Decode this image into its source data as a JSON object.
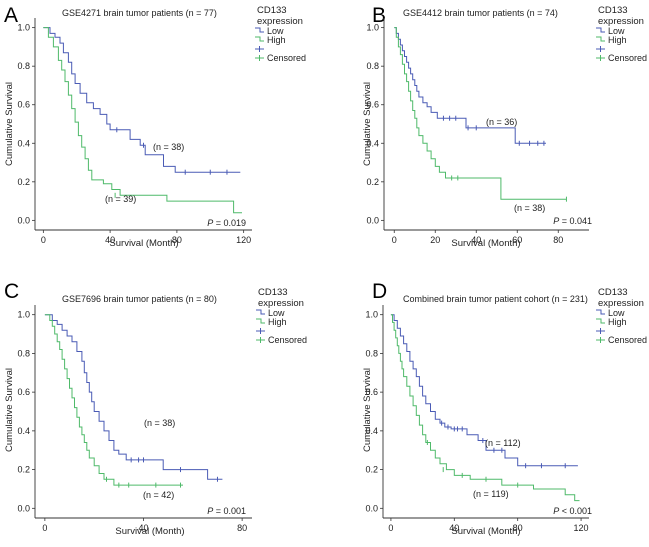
{
  "chart_data": [
    {
      "type": "line",
      "panel": "A",
      "title": "GSE4271 brain tumor patients (n = 77)",
      "xlabel": "Survival (Month)",
      "ylabel": "Cumulative Survival",
      "xlim": [
        -5,
        125
      ],
      "ylim": [
        -0.05,
        1.05
      ],
      "xticks": [
        0,
        40,
        80,
        120
      ],
      "yticks": [
        0.0,
        0.2,
        0.4,
        0.6,
        0.8,
        1.0
      ],
      "legend": {
        "title_line1": "CD133",
        "title_line2": "expression",
        "entries": [
          "Low",
          "High",
          "",
          "Censored"
        ],
        "position": "top-right"
      },
      "series": [
        {
          "name": "Low",
          "color": "#4a5bb5",
          "steps": [
            [
              0,
              1.0
            ],
            [
              4,
              0.97
            ],
            [
              7,
              0.95
            ],
            [
              10,
              0.92
            ],
            [
              12,
              0.87
            ],
            [
              15,
              0.82
            ],
            [
              17,
              0.76
            ],
            [
              19,
              0.71
            ],
            [
              22,
              0.66
            ],
            [
              26,
              0.61
            ],
            [
              30,
              0.58
            ],
            [
              34,
              0.55
            ],
            [
              38,
              0.5
            ],
            [
              40,
              0.47
            ],
            [
              48,
              0.47
            ],
            [
              52,
              0.42
            ],
            [
              58,
              0.39
            ],
            [
              61,
              0.34
            ],
            [
              72,
              0.28
            ],
            [
              79,
              0.25
            ],
            [
              118,
              0.25
            ]
          ],
          "censored": [
            [
              44,
              0.47
            ],
            [
              60,
              0.39
            ],
            [
              85,
              0.25
            ],
            [
              100,
              0.25
            ],
            [
              110,
              0.25
            ]
          ],
          "n_label": "(n = 38)"
        },
        {
          "name": "High",
          "color": "#4fba6a",
          "steps": [
            [
              0,
              1.0
            ],
            [
              3,
              0.95
            ],
            [
              6,
              0.9
            ],
            [
              9,
              0.83
            ],
            [
              11,
              0.78
            ],
            [
              13,
              0.72
            ],
            [
              15,
              0.65
            ],
            [
              17,
              0.58
            ],
            [
              19,
              0.51
            ],
            [
              21,
              0.44
            ],
            [
              23,
              0.38
            ],
            [
              25,
              0.32
            ],
            [
              27,
              0.26
            ],
            [
              29,
              0.21
            ],
            [
              36,
              0.19
            ],
            [
              41,
              0.16
            ],
            [
              46,
              0.13
            ],
            [
              74,
              0.1
            ],
            [
              114,
              0.04
            ],
            [
              119,
              0.04
            ]
          ],
          "censored": [
            [
              43,
              0.13
            ]
          ],
          "n_label": "(n = 39)"
        }
      ],
      "p_text": "P",
      "p_value": " = 0.019"
    },
    {
      "type": "line",
      "panel": "B",
      "title": "GSE4412 brain tumor patients (n = 74)",
      "xlabel": "Survival (Month)",
      "ylabel": "Cumulative Survival",
      "xlim": [
        -5,
        95
      ],
      "ylim": [
        -0.05,
        1.05
      ],
      "xticks": [
        0,
        20,
        40,
        60,
        80
      ],
      "yticks": [
        0.0,
        0.2,
        0.4,
        0.6,
        0.8,
        1.0
      ],
      "legend": {
        "title_line1": "CD133",
        "title_line2": "expression",
        "entries": [
          "Low",
          "High",
          "",
          "Censored"
        ],
        "position": "top-right"
      },
      "series": [
        {
          "name": "Low",
          "color": "#4a5bb5",
          "steps": [
            [
              0,
              1.0
            ],
            [
              1,
              0.97
            ],
            [
              2,
              0.94
            ],
            [
              3,
              0.91
            ],
            [
              4,
              0.88
            ],
            [
              5,
              0.85
            ],
            [
              6,
              0.82
            ],
            [
              7,
              0.79
            ],
            [
              8,
              0.76
            ],
            [
              9,
              0.73
            ],
            [
              10,
              0.7
            ],
            [
              11,
              0.67
            ],
            [
              12,
              0.64
            ],
            [
              14,
              0.61
            ],
            [
              16,
              0.59
            ],
            [
              18,
              0.56
            ],
            [
              21,
              0.53
            ],
            [
              35,
              0.48
            ],
            [
              59,
              0.4
            ],
            [
              74,
              0.4
            ]
          ],
          "censored": [
            [
              24,
              0.53
            ],
            [
              27,
              0.53
            ],
            [
              30,
              0.53
            ],
            [
              36,
              0.48
            ],
            [
              40,
              0.48
            ],
            [
              61,
              0.4
            ],
            [
              66,
              0.4
            ],
            [
              70,
              0.4
            ],
            [
              73,
              0.4
            ]
          ],
          "n_label": "(n = 36)"
        },
        {
          "name": "High",
          "color": "#4fba6a",
          "steps": [
            [
              0,
              1.0
            ],
            [
              1,
              0.95
            ],
            [
              2,
              0.9
            ],
            [
              3,
              0.86
            ],
            [
              4,
              0.81
            ],
            [
              5,
              0.76
            ],
            [
              6,
              0.72
            ],
            [
              7,
              0.67
            ],
            [
              8,
              0.62
            ],
            [
              9,
              0.57
            ],
            [
              10,
              0.53
            ],
            [
              11,
              0.48
            ],
            [
              12,
              0.44
            ],
            [
              14,
              0.4
            ],
            [
              16,
              0.36
            ],
            [
              18,
              0.32
            ],
            [
              20,
              0.28
            ],
            [
              22,
              0.25
            ],
            [
              25,
              0.22
            ],
            [
              52,
              0.11
            ],
            [
              84,
              0.11
            ]
          ],
          "censored": [
            [
              28,
              0.22
            ],
            [
              31,
              0.22
            ],
            [
              84,
              0.11
            ]
          ],
          "n_label": "(n = 38)"
        }
      ],
      "p_text": "P",
      "p_value": " = 0.041"
    },
    {
      "type": "line",
      "panel": "C",
      "title": "GSE7696 brain tumor patients (n = 80)",
      "xlabel": "Survival (Month)",
      "ylabel": "Cumulative Survival",
      "xlim": [
        -4,
        84
      ],
      "ylim": [
        -0.05,
        1.05
      ],
      "xticks": [
        0,
        40,
        80
      ],
      "yticks": [
        0.0,
        0.2,
        0.4,
        0.6,
        0.8,
        1.0
      ],
      "legend": {
        "title_line1": "CD133",
        "title_line2": "expression",
        "entries": [
          "Low",
          "High",
          "",
          "Censored"
        ],
        "position": "top-right"
      },
      "series": [
        {
          "name": "Low",
          "color": "#4a5bb5",
          "steps": [
            [
              0,
              1.0
            ],
            [
              3,
              0.97
            ],
            [
              5,
              0.95
            ],
            [
              7,
              0.92
            ],
            [
              9,
              0.89
            ],
            [
              11,
              0.86
            ],
            [
              13,
              0.81
            ],
            [
              15,
              0.76
            ],
            [
              16,
              0.7
            ],
            [
              17,
              0.65
            ],
            [
              18,
              0.6
            ],
            [
              19,
              0.55
            ],
            [
              20,
              0.5
            ],
            [
              22,
              0.45
            ],
            [
              24,
              0.4
            ],
            [
              26,
              0.35
            ],
            [
              28,
              0.3
            ],
            [
              30,
              0.28
            ],
            [
              33,
              0.25
            ],
            [
              48,
              0.2
            ],
            [
              66,
              0.15
            ],
            [
              72,
              0.15
            ]
          ],
          "censored": [
            [
              35,
              0.25
            ],
            [
              38,
              0.25
            ],
            [
              40,
              0.25
            ],
            [
              55,
              0.2
            ],
            [
              70,
              0.15
            ]
          ],
          "n_label": "(n = 38)"
        },
        {
          "name": "High",
          "color": "#4fba6a",
          "steps": [
            [
              0,
              1.0
            ],
            [
              2,
              0.97
            ],
            [
              3,
              0.94
            ],
            [
              4,
              0.9
            ],
            [
              5,
              0.86
            ],
            [
              6,
              0.82
            ],
            [
              7,
              0.77
            ],
            [
              8,
              0.72
            ],
            [
              9,
              0.67
            ],
            [
              10,
              0.62
            ],
            [
              11,
              0.57
            ],
            [
              12,
              0.52
            ],
            [
              13,
              0.47
            ],
            [
              14,
              0.42
            ],
            [
              15,
              0.38
            ],
            [
              16,
              0.34
            ],
            [
              17,
              0.3
            ],
            [
              18,
              0.26
            ],
            [
              20,
              0.22
            ],
            [
              22,
              0.18
            ],
            [
              24,
              0.15
            ],
            [
              28,
              0.12
            ],
            [
              56,
              0.12
            ]
          ],
          "censored": [
            [
              25,
              0.15
            ],
            [
              30,
              0.12
            ],
            [
              34,
              0.12
            ],
            [
              45,
              0.12
            ],
            [
              55,
              0.12
            ]
          ],
          "n_label": "(n = 42)"
        }
      ],
      "p_text": "P",
      "p_value": " = 0.001"
    },
    {
      "type": "line",
      "panel": "D",
      "title": "Combined brain tumor patient cohort (n = 231)",
      "xlabel": "Survival (Month)",
      "ylabel": "Cumulative Survival",
      "xlim": [
        -5,
        125
      ],
      "ylim": [
        -0.05,
        1.05
      ],
      "xticks": [
        0,
        40,
        80,
        120
      ],
      "yticks": [
        0.0,
        0.2,
        0.4,
        0.6,
        0.8,
        1.0
      ],
      "legend": {
        "title_line1": "CD133",
        "title_line2": "expression",
        "entries": [
          "Low",
          "High",
          "",
          "Censored"
        ],
        "position": "top-right"
      },
      "series": [
        {
          "name": "Low",
          "color": "#4a5bb5",
          "steps": [
            [
              0,
              1.0
            ],
            [
              2,
              0.97
            ],
            [
              4,
              0.93
            ],
            [
              6,
              0.89
            ],
            [
              8,
              0.85
            ],
            [
              10,
              0.81
            ],
            [
              12,
              0.76
            ],
            [
              14,
              0.72
            ],
            [
              16,
              0.68
            ],
            [
              18,
              0.63
            ],
            [
              20,
              0.58
            ],
            [
              22,
              0.54
            ],
            [
              25,
              0.5
            ],
            [
              28,
              0.46
            ],
            [
              31,
              0.44
            ],
            [
              34,
              0.42
            ],
            [
              38,
              0.41
            ],
            [
              48,
              0.38
            ],
            [
              55,
              0.35
            ],
            [
              60,
              0.3
            ],
            [
              72,
              0.26
            ],
            [
              80,
              0.22
            ],
            [
              118,
              0.22
            ]
          ],
          "censored": [
            [
              32,
              0.44
            ],
            [
              36,
              0.42
            ],
            [
              40,
              0.41
            ],
            [
              42,
              0.41
            ],
            [
              45,
              0.41
            ],
            [
              58,
              0.35
            ],
            [
              65,
              0.3
            ],
            [
              70,
              0.3
            ],
            [
              85,
              0.22
            ],
            [
              95,
              0.22
            ],
            [
              110,
              0.22
            ]
          ],
          "n_label": "(n = 112)"
        },
        {
          "name": "High",
          "color": "#4fba6a",
          "steps": [
            [
              0,
              1.0
            ],
            [
              1,
              0.96
            ],
            [
              2,
              0.92
            ],
            [
              3,
              0.88
            ],
            [
              4,
              0.84
            ],
            [
              5,
              0.8
            ],
            [
              6,
              0.76
            ],
            [
              7,
              0.72
            ],
            [
              8,
              0.68
            ],
            [
              10,
              0.63
            ],
            [
              12,
              0.58
            ],
            [
              14,
              0.53
            ],
            [
              16,
              0.48
            ],
            [
              18,
              0.43
            ],
            [
              20,
              0.38
            ],
            [
              22,
              0.34
            ],
            [
              25,
              0.3
            ],
            [
              28,
              0.26
            ],
            [
              31,
              0.23
            ],
            [
              35,
              0.2
            ],
            [
              40,
              0.17
            ],
            [
              50,
              0.15
            ],
            [
              70,
              0.12
            ],
            [
              90,
              0.1
            ],
            [
              110,
              0.07
            ],
            [
              116,
              0.04
            ],
            [
              119,
              0.04
            ]
          ],
          "censored": [
            [
              23,
              0.34
            ],
            [
              33,
              0.2
            ],
            [
              45,
              0.17
            ],
            [
              60,
              0.15
            ],
            [
              80,
              0.12
            ]
          ],
          "n_label": "(n = 119)"
        }
      ],
      "p_text": "P",
      "p_value": " < 0.001"
    }
  ]
}
